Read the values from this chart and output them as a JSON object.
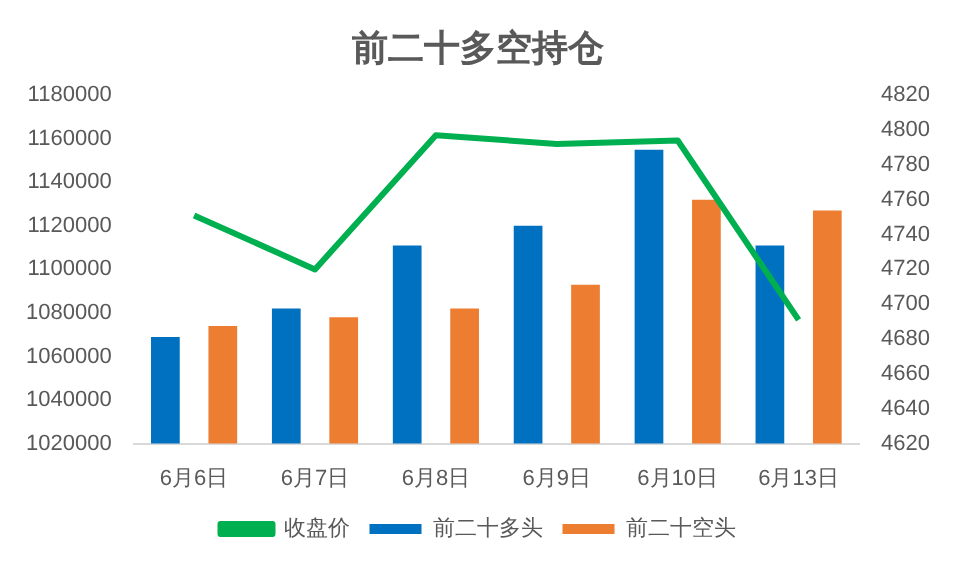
{
  "chart_data": {
    "type": "bar",
    "title": "前二十多空持仓",
    "categories": [
      "6月6日",
      "6月7日",
      "6月8日",
      "6月9日",
      "6月10日",
      "6月13日"
    ],
    "series": [
      {
        "name": "前二十多头",
        "color": "#0070c0",
        "values": [
          1069000,
          1082000,
          1111000,
          1120000,
          1155000,
          1111000
        ]
      },
      {
        "name": "前二十空头",
        "color": "#ed7d31",
        "values": [
          1074000,
          1078000,
          1082000,
          1093000,
          1132000,
          1127000
        ]
      },
      {
        "name": "收盘价",
        "type": "line",
        "axis": "y2",
        "color": "#00b050",
        "values": [
          4751,
          4720,
          4797,
          4792,
          4794,
          4691
        ]
      }
    ],
    "ylim": [
      1020000,
      1180000
    ],
    "yticks": [
      1020000,
      1040000,
      1060000,
      1080000,
      1100000,
      1120000,
      1140000,
      1160000,
      1180000
    ],
    "y2lim": [
      4620,
      4820
    ],
    "y2ticks": [
      4620,
      4640,
      4660,
      4680,
      4700,
      4720,
      4740,
      4760,
      4780,
      4800,
      4820
    ],
    "grid": false,
    "legend": "bottom",
    "marker": "none"
  }
}
